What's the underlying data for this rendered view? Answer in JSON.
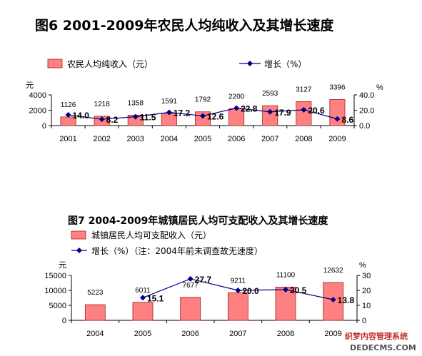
{
  "chart_data": [
    {
      "type": "bar",
      "title": "图6   2001-2009年农民人均纯收入及其增长速度",
      "categories": [
        "2001",
        "2002",
        "2003",
        "2004",
        "2005",
        "2006",
        "2007",
        "2008",
        "2009"
      ],
      "series": [
        {
          "name": "农民人均纯收入（元）",
          "type": "bar",
          "axis": "left",
          "values": [
            1126,
            1218,
            1358,
            1591,
            1792,
            2200,
            2593,
            3127,
            3396
          ]
        },
        {
          "name": "增长（%）",
          "type": "line",
          "axis": "right",
          "values": [
            14.0,
            8.2,
            11.5,
            17.2,
            12.6,
            22.8,
            17.9,
            20.6,
            8.6
          ]
        }
      ],
      "y_left": {
        "unit": "元",
        "ticks": [
          "0",
          "2000",
          "4000"
        ],
        "ylim": [
          0,
          4000
        ]
      },
      "y_right": {
        "unit": "%",
        "ticks": [
          "0.0",
          "20.0",
          "40.0"
        ],
        "ylim": [
          0,
          40
        ]
      },
      "bar_labels": [
        "1126",
        "1218",
        "1358",
        "1591",
        "1792",
        "2200",
        "2593",
        "3127",
        "3396"
      ],
      "line_labels": [
        "14.0",
        "8.2",
        "11.5",
        "17.2",
        "12.6",
        "22.8",
        "17.9",
        "20.6",
        "8.6"
      ]
    },
    {
      "type": "bar",
      "title": "图7   2004-2009年城镇居民人均可支配收入及其增长速度",
      "categories": [
        "2004",
        "2005",
        "2006",
        "2007",
        "2008",
        "2009"
      ],
      "series": [
        {
          "name": "城镇居民人均可支配收入（元）",
          "type": "bar",
          "axis": "left",
          "values": [
            5223,
            6011,
            7677,
            9211,
            11100,
            12632
          ]
        },
        {
          "name": "增长（%）（注：2004年前未调查故无速度）",
          "type": "line",
          "axis": "right",
          "values": [
            null,
            15.1,
            27.7,
            20.0,
            20.5,
            13.8
          ]
        }
      ],
      "y_left": {
        "unit": "元",
        "ticks": [
          "0",
          "5000",
          "10000",
          "15000"
        ],
        "ylim": [
          0,
          15000
        ]
      },
      "y_right": {
        "unit": "%",
        "ticks": [
          "0",
          "10",
          "20",
          "30"
        ],
        "ylim": [
          0,
          30
        ]
      },
      "bar_labels": [
        "5223",
        "6011",
        "7677",
        "9211",
        "11100",
        "12632"
      ],
      "line_labels": [
        "",
        "15.1",
        "27.7",
        "20.0",
        "20.5",
        "13.8"
      ]
    }
  ],
  "colors": {
    "bar_fill": "#ff8080",
    "bar_stroke": "#a02020",
    "line": "#000080",
    "axis": "#000000"
  },
  "watermark": {
    "line1": "织梦内容管理系统",
    "line2": "DEDECMS.COM"
  }
}
